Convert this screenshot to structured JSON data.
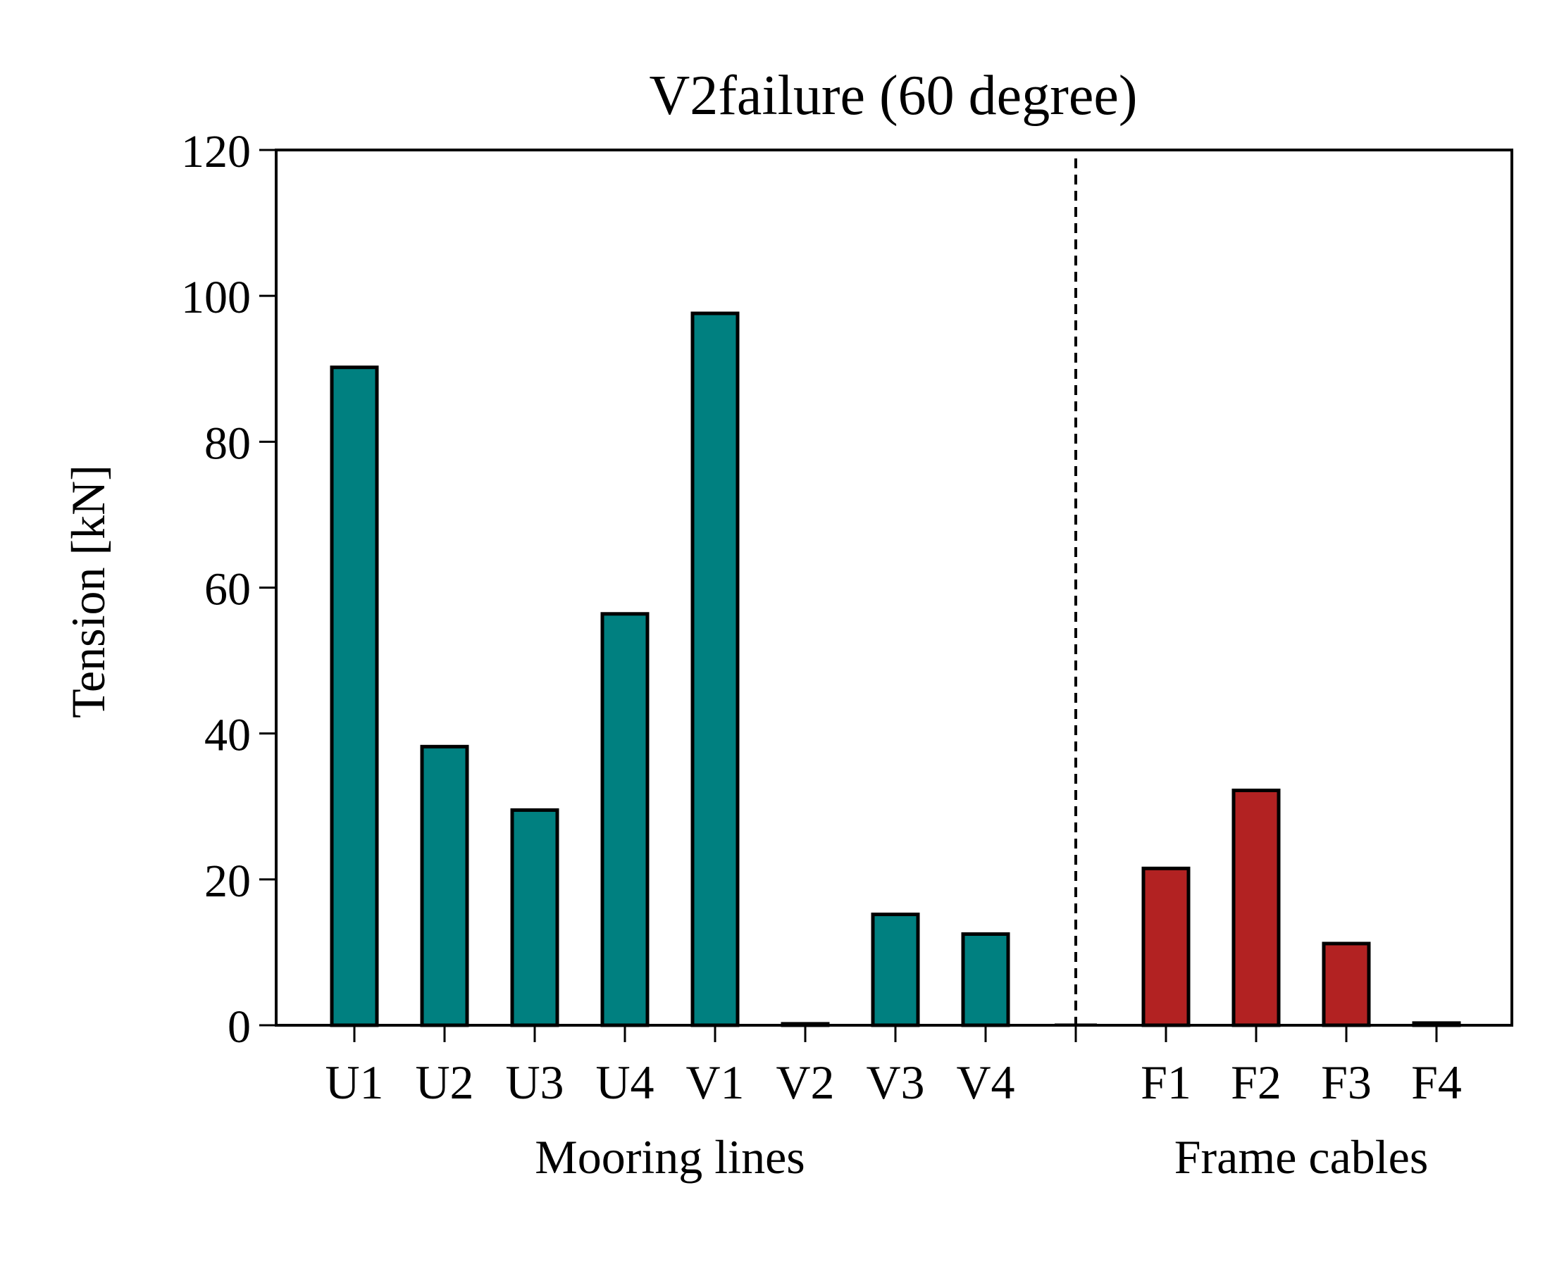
{
  "chart_data": {
    "type": "bar",
    "title": "V2failure (60 degree)",
    "ylabel": "Tension [kN]",
    "xlabel": "",
    "ylim": [
      0,
      120
    ],
    "yticks": [
      0,
      20,
      40,
      60,
      80,
      100,
      120
    ],
    "grid": false,
    "groups": [
      {
        "label": "Mooring lines",
        "color": "#008080",
        "categories": [
          "U1",
          "U2",
          "U3",
          "U4",
          "V1",
          "V2",
          "V3",
          "V4"
        ],
        "values": [
          90.2,
          38.2,
          29.5,
          56.4,
          97.6,
          0.2,
          15.2,
          12.5
        ]
      },
      {
        "label": "Frame cables",
        "color": "#b22222",
        "categories": [
          "F1",
          "F2",
          "F3",
          "F4"
        ],
        "values": [
          21.5,
          32.2,
          11.2,
          0.3
        ]
      }
    ],
    "separator": {
      "style": "dashed",
      "color": "#000000"
    },
    "colors": {
      "mooring": "#008080",
      "frame": "#b22222",
      "edge": "#000000"
    }
  }
}
